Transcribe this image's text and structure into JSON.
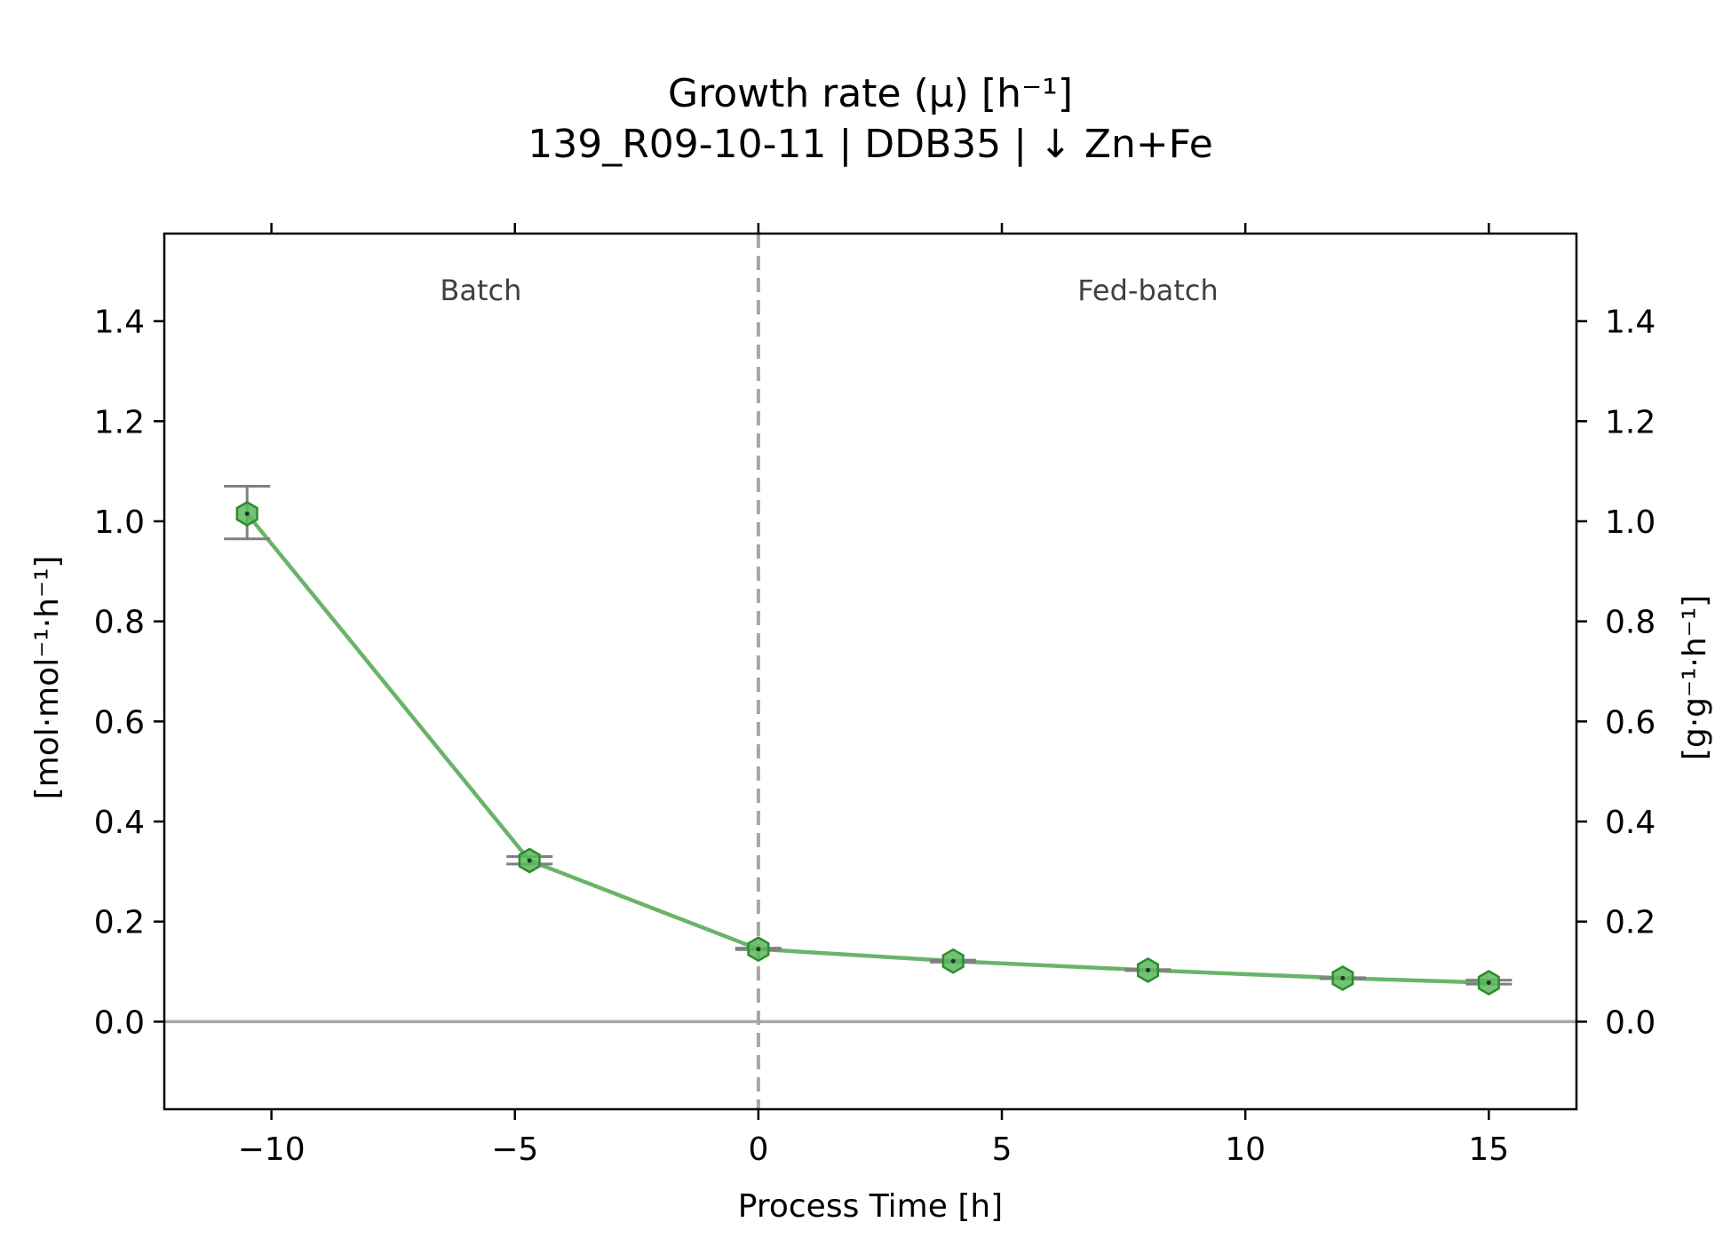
{
  "chart_data": {
    "type": "line",
    "title": "Growth rate (μ) [h⁻¹]",
    "subtitle": "139_R09-10-11  |  DDB35  |  ↓ Zn+Fe",
    "xlabel": "Process Time [h]",
    "ylabel_left": "[mol·mol⁻¹·h⁻¹]",
    "ylabel_right": "[g·g⁻¹·h⁻¹]",
    "xlim": [
      -12.2,
      16.8
    ],
    "ylim": [
      -0.175,
      1.575
    ],
    "x_ticks": [
      -10,
      -5,
      0,
      5,
      10,
      15
    ],
    "x_tick_labels": [
      "−10",
      "−5",
      "0",
      "5",
      "10",
      "15"
    ],
    "y_ticks": [
      0.0,
      0.2,
      0.4,
      0.6,
      0.8,
      1.0,
      1.2,
      1.4
    ],
    "y_tick_labels": [
      "0.0",
      "0.2",
      "0.4",
      "0.6",
      "0.8",
      "1.0",
      "1.2",
      "1.4"
    ],
    "regions": [
      {
        "label": "Batch",
        "x_center": -5.7
      },
      {
        "label": "Fed-batch",
        "x_center": 8.0
      }
    ],
    "phase_boundary_x": 0,
    "zero_line": true,
    "grid": false,
    "series": [
      {
        "x": [
          -10.5,
          -4.7,
          0.0,
          4.0,
          8.0,
          12.0,
          15.0
        ],
        "y": [
          1.015,
          0.322,
          0.145,
          0.121,
          0.103,
          0.087,
          0.078
        ],
        "err_low": [
          0.965,
          0.315,
          0.144,
          0.119,
          0.102,
          0.086,
          0.075
        ],
        "err_high": [
          1.07,
          0.33,
          0.147,
          0.123,
          0.104,
          0.088,
          0.083
        ],
        "color": "#3a9a3a",
        "marker": "hexagon"
      }
    ],
    "colors": {
      "line": "#6ab46a",
      "marker_fill": "#5cb85c",
      "marker_edge": "#2e8b2e",
      "errorbar": "#808080",
      "reference_lines": "#a6a6a6"
    }
  }
}
